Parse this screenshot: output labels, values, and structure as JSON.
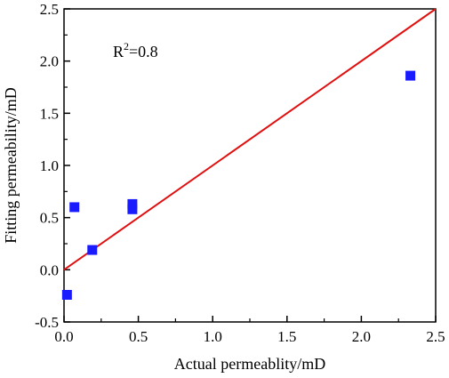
{
  "chart_data": {
    "type": "scatter",
    "xlabel": "Actual permeablity/mD",
    "ylabel": "Fitting permeability/mD",
    "xlim": [
      0.0,
      2.5
    ],
    "ylim": [
      -0.5,
      2.5
    ],
    "x_ticks": [
      "0.0",
      "0.5",
      "1.0",
      "1.5",
      "2.0",
      "2.5"
    ],
    "y_ticks": [
      "-0.5",
      "0.0",
      "0.5",
      "1.0",
      "1.5",
      "2.0",
      "2.5"
    ],
    "grid": false,
    "legend": "none",
    "annotation": {
      "base": "R",
      "sup": "2",
      "rest": "=0.8"
    },
    "series": [
      {
        "marker": "square",
        "color": "#1a1aff",
        "points": [
          {
            "x": 0.02,
            "y": -0.24
          },
          {
            "x": 0.07,
            "y": 0.6
          },
          {
            "x": 0.19,
            "y": 0.19
          },
          {
            "x": 0.46,
            "y": 0.58
          },
          {
            "x": 0.46,
            "y": 0.63
          },
          {
            "x": 2.33,
            "y": 1.86
          }
        ]
      }
    ],
    "fit_line": {
      "color": "#e01010",
      "points": [
        {
          "x": 0.0,
          "y": 0.0
        },
        {
          "x": 2.5,
          "y": 2.5
        }
      ]
    }
  }
}
